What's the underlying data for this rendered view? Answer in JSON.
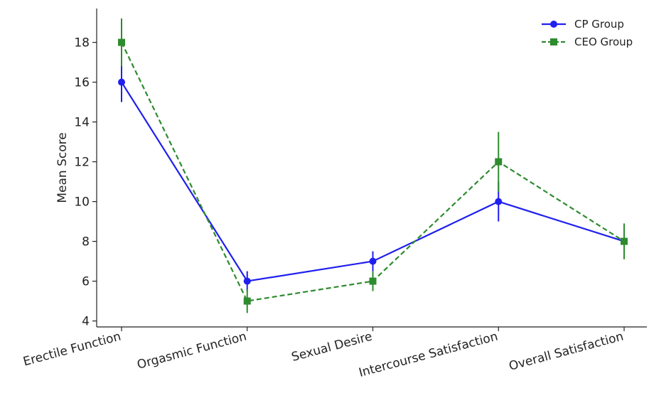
{
  "chart_data": {
    "type": "line",
    "title": "",
    "xlabel": "",
    "ylabel": "Mean Score",
    "categories": [
      "Erectile Function",
      "Orgasmic Function",
      "Sexual Desire",
      "Intercourse Satisfaction",
      "Overall Satisfaction"
    ],
    "ylim": [
      3.7,
      19.7
    ],
    "yticks": [
      4,
      6,
      8,
      10,
      12,
      14,
      16,
      18
    ],
    "grid": false,
    "legend_position": "top-right",
    "series": [
      {
        "name": "CP Group",
        "values": [
          16,
          6,
          7,
          10,
          8
        ],
        "errors": [
          1.0,
          0.5,
          0.5,
          1.0,
          0.7
        ],
        "color": "#1f1fef",
        "marker": "circle",
        "line_style": "solid"
      },
      {
        "name": "CEO Group",
        "values": [
          18,
          5,
          6,
          12,
          8
        ],
        "errors": [
          1.2,
          0.6,
          0.5,
          1.5,
          0.9
        ],
        "color": "#2e8b2e",
        "marker": "square",
        "line_style": "dashed"
      }
    ]
  }
}
